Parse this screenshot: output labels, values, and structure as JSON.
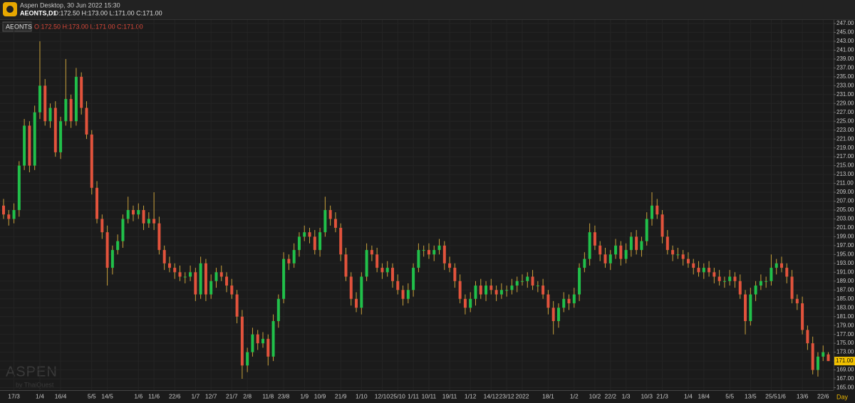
{
  "header": {
    "app_title": "Aspen Desktop, 30 Jun 2022 15:30",
    "symbol": "AEONTS,D1",
    "ohlc": "O:172.50 H:173.00 L:171.00 C:171.00"
  },
  "chart_data": {
    "type": "candlestick",
    "legend_symbol": "AEONTS",
    "legend_ohlc": "O:172.50 H:173.00 L:171.00 C:171.00",
    "timeframe": "Day",
    "watermark": "ASPEN",
    "watermark_sub": "by ThaiQuest",
    "up_color": "#21c04a",
    "down_color": "#e2533c",
    "wick_color": "#c9a23c",
    "last_price": {
      "value": 171,
      "label": "171.00"
    },
    "categories": [
      null,
      null,
      "17/3",
      null,
      null,
      null,
      null,
      "1/4",
      null,
      null,
      null,
      "16/4",
      null,
      null,
      null,
      null,
      null,
      "5/5",
      null,
      null,
      "14/5",
      null,
      null,
      null,
      null,
      null,
      "1/6",
      null,
      null,
      "11/6",
      null,
      null,
      null,
      "22/6",
      null,
      null,
      null,
      "1/7",
      null,
      null,
      "12/7",
      null,
      null,
      null,
      "21/7",
      null,
      null,
      "2/8",
      null,
      null,
      null,
      "11/8",
      null,
      null,
      "23/8",
      null,
      null,
      null,
      "1/9",
      null,
      null,
      "10/9",
      null,
      null,
      null,
      "21/9",
      null,
      null,
      null,
      "1/10",
      null,
      null,
      null,
      "12/10",
      null,
      null,
      "25/10",
      null,
      null,
      "1/11",
      null,
      null,
      "10/11",
      null,
      null,
      null,
      "19/11",
      null,
      null,
      null,
      "1/12",
      null,
      null,
      null,
      "14/12",
      null,
      null,
      "23/12",
      null,
      null,
      "2022",
      null,
      null,
      null,
      null,
      "18/1",
      null,
      null,
      null,
      null,
      "1/2",
      null,
      null,
      null,
      "10/2",
      null,
      null,
      "22/2",
      null,
      null,
      "1/3",
      null,
      null,
      null,
      "10/3",
      null,
      null,
      "21/3",
      null,
      null,
      null,
      null,
      "1/4",
      null,
      null,
      "18/4",
      null,
      null,
      null,
      null,
      "5/5",
      null,
      null,
      null,
      "13/5",
      null,
      null,
      null,
      "25/5",
      null,
      "1/6",
      null,
      null,
      null,
      "13/6",
      null,
      null,
      null,
      "22/6",
      null
    ],
    "open": [
      206,
      204,
      203,
      205,
      215,
      224,
      215,
      227,
      233,
      225,
      228,
      218,
      225,
      230,
      225,
      235,
      228,
      222,
      210,
      203,
      200,
      192,
      196,
      198,
      203,
      205,
      204,
      205,
      202,
      203,
      202,
      196,
      193,
      192,
      191,
      190,
      190,
      191,
      186,
      193,
      186,
      189,
      191,
      190,
      188,
      186,
      181,
      170,
      173,
      177,
      175,
      176,
      172,
      180,
      185,
      194,
      193,
      196,
      199,
      200,
      199,
      196,
      200,
      205,
      203,
      201,
      195,
      190,
      185,
      183,
      190,
      196,
      195,
      192,
      191,
      192,
      189,
      187,
      185,
      187,
      192,
      196,
      196,
      195,
      196,
      197,
      193,
      192,
      189,
      185,
      183,
      185,
      188,
      186,
      188,
      187,
      186,
      187,
      187,
      188,
      189,
      189,
      190,
      188,
      188,
      186,
      183,
      180,
      183,
      185,
      184,
      186,
      192,
      194,
      200,
      197,
      195,
      193,
      195,
      197,
      194,
      196,
      199,
      196,
      198,
      203,
      206,
      204,
      199,
      196,
      195,
      195,
      194,
      193,
      192,
      191,
      192,
      191,
      190,
      189,
      189,
      190,
      189,
      186,
      180,
      186,
      188,
      189,
      189,
      192,
      193,
      192,
      190,
      185,
      184,
      178,
      175,
      169,
      172,
      172.5
    ],
    "high": [
      207.5,
      205,
      206.5,
      216,
      225.5,
      225,
      228.5,
      243,
      234.5,
      229,
      229.5,
      226,
      239,
      231,
      237,
      236,
      229.5,
      223,
      211.5,
      204,
      201.5,
      197,
      199.5,
      204,
      208,
      206,
      206.5,
      206,
      204.5,
      209,
      203.5,
      197,
      194.5,
      193,
      192.5,
      191,
      192.5,
      192,
      194.5,
      194,
      190.5,
      192,
      192.5,
      191,
      189.5,
      187,
      182.5,
      174,
      178.5,
      178,
      177.5,
      177,
      181.5,
      186,
      195.5,
      195,
      197.5,
      200,
      201.5,
      201,
      200.5,
      201,
      208,
      206,
      204.5,
      202,
      196.5,
      191,
      186.5,
      191,
      197.5,
      197,
      196.5,
      193,
      193.5,
      193,
      190.5,
      188,
      188.5,
      193,
      197.5,
      197,
      197.5,
      197,
      198.5,
      198,
      194.5,
      193,
      190.5,
      186,
      186.5,
      189,
      189.5,
      189,
      189.5,
      188,
      188.5,
      188,
      189.5,
      190,
      190.5,
      191,
      191.5,
      189,
      189.5,
      187,
      184.5,
      184,
      186.5,
      186,
      187.5,
      193,
      195.5,
      202,
      201.5,
      198,
      196.5,
      196,
      198.5,
      198,
      197.5,
      200,
      200.5,
      199,
      204.5,
      209,
      207.5,
      205,
      200.5,
      197,
      196.5,
      196,
      195.5,
      194,
      193.5,
      193,
      193.5,
      192,
      191.5,
      190,
      191.5,
      191,
      190.5,
      187,
      187.5,
      189,
      190.5,
      190,
      195,
      194,
      194.5,
      193,
      191.5,
      186,
      185.5,
      179,
      176.5,
      173,
      174.5,
      173
    ],
    "low": [
      203,
      201.5,
      202,
      203.5,
      214,
      213.5,
      214,
      225.5,
      224,
      223.5,
      217,
      216.5,
      224,
      223.5,
      224,
      226.5,
      221,
      208.5,
      202,
      198.5,
      188,
      190.5,
      195,
      196.5,
      202,
      202.5,
      203,
      200.5,
      201,
      200.5,
      195,
      191.5,
      191,
      189.5,
      189,
      188.5,
      189,
      184.5,
      185,
      184.5,
      185,
      187.5,
      189,
      186.5,
      185,
      179.5,
      167,
      168.5,
      172,
      173.5,
      174,
      170,
      171,
      178.5,
      184,
      191.5,
      192,
      194.5,
      198,
      197.5,
      195,
      194.5,
      199,
      201.5,
      200,
      193.5,
      189,
      183.5,
      182,
      181.5,
      189,
      193.5,
      191,
      189.5,
      190,
      187.5,
      186,
      183.5,
      184,
      185.5,
      191,
      194.5,
      194,
      193.5,
      195,
      191.5,
      191,
      187.5,
      184,
      181.5,
      182,
      183.5,
      185,
      184.5,
      186,
      184.5,
      185,
      185.5,
      186,
      186.5,
      188,
      187.5,
      187,
      186.5,
      185,
      181.5,
      177,
      178.5,
      182,
      182.5,
      183,
      184.5,
      191,
      192.5,
      196,
      193.5,
      192,
      191.5,
      194,
      192.5,
      193,
      194.5,
      195,
      194.5,
      197,
      201.5,
      203,
      197.5,
      195,
      193.5,
      194,
      192.5,
      192,
      190.5,
      190,
      189.5,
      190,
      188.5,
      188,
      187.5,
      188,
      187.5,
      185,
      177,
      179,
      184.5,
      187,
      187.5,
      188,
      190.5,
      191,
      188.5,
      184,
      182.5,
      177,
      173.5,
      168,
      167.5,
      171,
      171
    ],
    "close": [
      204,
      203,
      205,
      215,
      224,
      215,
      227,
      233,
      225,
      228,
      218,
      225,
      230,
      225,
      235,
      228,
      222,
      210,
      203,
      200,
      192,
      196,
      198,
      203,
      205,
      204,
      205,
      202,
      203,
      202,
      196,
      193,
      192,
      191,
      190,
      190,
      191,
      186,
      193,
      186,
      189,
      191,
      190,
      188,
      186,
      181,
      170,
      173,
      177,
      175,
      176,
      172,
      180,
      185,
      194,
      193,
      196,
      199,
      200,
      199,
      196,
      200,
      205,
      203,
      201,
      195,
      190,
      185,
      183,
      190,
      196,
      195,
      192,
      191,
      192,
      189,
      187,
      185,
      187,
      192,
      196,
      196,
      195,
      196,
      197,
      193,
      192,
      189,
      185,
      183,
      185,
      188,
      186,
      188,
      187,
      186,
      187,
      187,
      188,
      189,
      189,
      190,
      188,
      188,
      186,
      183,
      180,
      183,
      185,
      184,
      186,
      192,
      194,
      200,
      197,
      195,
      193,
      195,
      197,
      194,
      196,
      199,
      196,
      198,
      203,
      206,
      204,
      199,
      196,
      195,
      195,
      194,
      193,
      192,
      191,
      192,
      191,
      190,
      189,
      189,
      190,
      189,
      186,
      180,
      186,
      188,
      189,
      189,
      192,
      193,
      192,
      190,
      185,
      184,
      178,
      175,
      169,
      172,
      173,
      171
    ],
    "ylim": [
      164.6,
      247.8
    ],
    "yticks": [
      {
        "value": 165,
        "label": "165.00"
      },
      {
        "value": 167,
        "label": "167.00"
      },
      {
        "value": 169,
        "label": "169.00"
      },
      {
        "value": 171,
        "label": "171.00"
      },
      {
        "value": 173,
        "label": "173.00"
      },
      {
        "value": 175,
        "label": "175.00"
      },
      {
        "value": 177,
        "label": "177.00"
      },
      {
        "value": 179,
        "label": "179.00"
      },
      {
        "value": 181,
        "label": "181.00"
      },
      {
        "value": 183,
        "label": "183.00"
      },
      {
        "value": 185,
        "label": "185.00"
      },
      {
        "value": 187,
        "label": "187.00"
      },
      {
        "value": 189,
        "label": "189.00"
      },
      {
        "value": 191,
        "label": "191.00"
      },
      {
        "value": 193,
        "label": "193.00"
      },
      {
        "value": 195,
        "label": "195.00"
      },
      {
        "value": 197,
        "label": "197.00"
      },
      {
        "value": 199,
        "label": "199.00"
      },
      {
        "value": 201,
        "label": "201.00"
      },
      {
        "value": 203,
        "label": "203.00"
      },
      {
        "value": 205,
        "label": "205.00"
      },
      {
        "value": 207,
        "label": "207.00"
      },
      {
        "value": 209,
        "label": "209.00"
      },
      {
        "value": 211,
        "label": "211.00"
      },
      {
        "value": 213,
        "label": "213.00"
      },
      {
        "value": 215,
        "label": "215.00"
      },
      {
        "value": 217,
        "label": "217.00"
      },
      {
        "value": 219,
        "label": "219.00"
      },
      {
        "value": 221,
        "label": "221.00"
      },
      {
        "value": 223,
        "label": "223.00"
      },
      {
        "value": 225,
        "label": "225.00"
      },
      {
        "value": 227,
        "label": "227.00"
      },
      {
        "value": 229,
        "label": "229.00"
      },
      {
        "value": 231,
        "label": "231.00"
      },
      {
        "value": 233,
        "label": "233.00"
      },
      {
        "value": 235,
        "label": "235.00"
      },
      {
        "value": 237,
        "label": "237.00"
      },
      {
        "value": 239,
        "label": "239.00"
      },
      {
        "value": 241,
        "label": "241.00"
      },
      {
        "value": 243,
        "label": "243.00"
      },
      {
        "value": 245,
        "label": "245.00"
      },
      {
        "value": 247,
        "label": "247.00"
      }
    ],
    "grid": true
  }
}
